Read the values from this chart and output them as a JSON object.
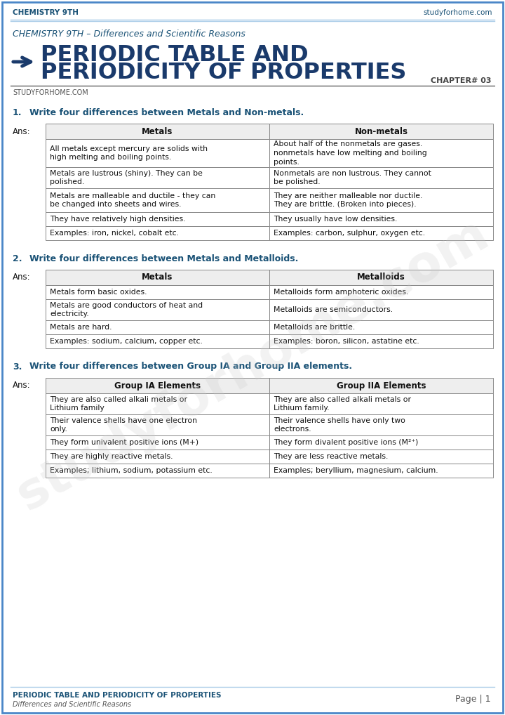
{
  "header_left": "CHEMISTRY 9TH",
  "header_right": "studyforhome.com",
  "subtitle": "CHEMISTRY 9TH – Differences and Scientific Reasons",
  "title_line1": "PERIODIC TABLE AND",
  "title_line2": "PERIODICITY OF PROPERTIES",
  "chapter": "CHAPTER# 03",
  "brand": "STUDYFORHOME.COM",
  "footer_left_line1": "PERIODIC TABLE AND PERIODICITY OF PROPERTIES",
  "footer_left_line2": "Differences and Scientific Reasons",
  "footer_right": "Page | 1",
  "blue_color": "#1a5276",
  "title_blue": "#1a3a6b",
  "border_color": "#4a86c8",
  "bg_color": "#ffffff",
  "q1_num": "1.",
  "q1_text": "Write four differences between Metals and Non-metals.",
  "q2_num": "2.",
  "q2_text": "Write four differences between Metals and Metalloids.",
  "q3_num": "3.",
  "q3_text": "Write four differences between Group IA and Group IIA elements.",
  "table1_headers": [
    "Metals",
    "Non-metals"
  ],
  "table1_rows": [
    [
      "All metals except mercury are solids with\nhigh melting and boiling points.",
      "About half of the nonmetals are gases.\nnonmetals have low melting and boiling\npoints."
    ],
    [
      "Metals are lustrous (shiny). They can be\npolished.",
      "Nonmetals are non lustrous. They cannot\nbe polished."
    ],
    [
      "Metals are malleable and ductile - they can\nbe changed into sheets and wires.",
      "They are neither malleable nor ductile.\nThey are brittle. (Broken into pieces)."
    ],
    [
      "They have relatively high densities.",
      "They usually have low densities."
    ],
    [
      "Examples: iron, nickel, cobalt etc.",
      "Examples: carbon, sulphur, oxygen etc."
    ]
  ],
  "table2_headers": [
    "Metals",
    "Metalloids"
  ],
  "table2_rows": [
    [
      "Metals form basic oxides.",
      "Metalloids form amphoteric oxides."
    ],
    [
      "Metals are good conductors of heat and\nelectricity.",
      "Metalloids are semiconductors."
    ],
    [
      "Metals are hard.",
      "Metalloids are brittle."
    ],
    [
      "Examples: sodium, calcium, copper etc.",
      "Examples: boron, silicon, astatine etc."
    ]
  ],
  "table3_headers": [
    "Group IA Elements",
    "Group IIA Elements"
  ],
  "table3_rows": [
    [
      "They are also called alkali metals or\nLithium family",
      "They are also called alkali metals or\nLithium family."
    ],
    [
      "Their valence shells have one electron\nonly.",
      "Their valence shells have only two\nelectrons."
    ],
    [
      "They form univalent positive ions (M+)",
      "They form divalent positive ions (M²⁺)"
    ],
    [
      "They are highly reactive metals.",
      "They are less reactive metals."
    ],
    [
      "Examples; lithium, sodium, potassium etc.",
      "Examples; beryllium, magnesium, calcium."
    ]
  ]
}
